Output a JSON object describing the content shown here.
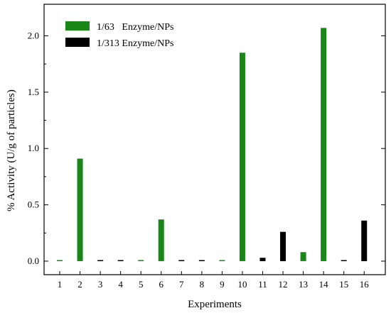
{
  "chart_data": {
    "type": "bar",
    "title": "",
    "xlabel": "Experiments",
    "ylabel": "% Activity (U/g of particles)",
    "categories": [
      "1",
      "2",
      "3",
      "4",
      "5",
      "6",
      "7",
      "8",
      "9",
      "10",
      "11",
      "12",
      "13",
      "14",
      "15",
      "16"
    ],
    "ylim": [
      -0.12,
      2.28
    ],
    "yticks": [
      0.0,
      0.5,
      1.0,
      1.5,
      2.0
    ],
    "ytick_labels": [
      "0.0",
      "0.5",
      "1.0",
      "1.5",
      "2.0"
    ],
    "legend_position": "top-left",
    "series": [
      {
        "name": "1/63   Enzyme/NPs",
        "color": "#188718",
        "values": [
          0.0,
          0.91,
          null,
          null,
          0.0,
          0.37,
          null,
          null,
          0.0,
          1.85,
          null,
          null,
          0.08,
          2.07,
          null,
          null
        ]
      },
      {
        "name": "1/313 Enzyme/NPs",
        "color": "#000000",
        "values": [
          null,
          null,
          0.0,
          0.0,
          null,
          null,
          0.0,
          0.0,
          null,
          null,
          0.03,
          0.26,
          null,
          null,
          0.0,
          0.36
        ]
      }
    ]
  }
}
